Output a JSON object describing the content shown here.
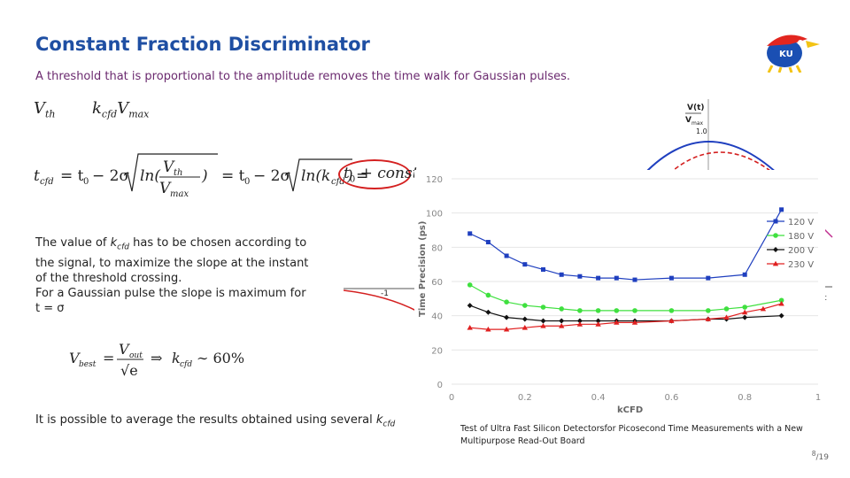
{
  "slide": {
    "title": "Constant Fraction Discriminator",
    "subtitle": "A threshold that is proportional to the amplitude removes the time walk for Gaussian pulses.",
    "page_num": "8",
    "page_total": "19"
  },
  "formulas": {
    "vth_lhs": "V",
    "vth_lhs_sub": "th",
    "vth_rhs": "k",
    "vth_rhs_sub": "cfd",
    "vth_rhs_v": "V",
    "vth_rhs_vsub": "max",
    "const_term": "t",
    "const_sub": "0",
    "const_tail": " + const",
    "vbest_lhs": "V",
    "vbest_sub": "best",
    "vbest_num": "V",
    "vbest_num_sub": "out",
    "vbest_den": "√e",
    "vbest_arrow": "⇒",
    "vbest_k": "k",
    "vbest_k_sub": "cfd",
    "vbest_val": "∼ 60%"
  },
  "text": {
    "para1_a": "The value of ",
    "para1_k": "k",
    "para1_ksub": "cfd",
    "para1_b": " has to be chosen according to the signal, to maximize the slope at the instant of the threshold crossing.",
    "para2": "For a Gaussian pulse the slope is maximum for t = σ",
    "para3_a": "It is possible to average the results obtained using several ",
    "para3_k": "k",
    "para3_ksub": "cfd"
  },
  "pulse_inset": {
    "ylabel_top": "V(t)",
    "ylabel_bot": "V",
    "ylabel_bot_sub": "max",
    "tick_one": "1.0",
    "tick_neg": "-1",
    "x_label": "t"
  },
  "reference": "Test of Ultra Fast Silicon Detectorsfor Picosecond Time Measurements with a New Multipurpose Read-Out Board",
  "colors": {
    "title": "#1f4fa3",
    "subtitle": "#6b2a6f",
    "series_120": "#1f3fbf",
    "series_180": "#3fe03f",
    "series_200": "#111111",
    "series_230": "#e02020"
  },
  "chart_data": {
    "type": "line",
    "xlabel": "kCFD",
    "ylabel": "Time Precision (ps)",
    "xlim": [
      0,
      1
    ],
    "ylim": [
      0,
      120
    ],
    "xticks": [
      "0",
      "0.2",
      "0.4",
      "0.6",
      "0.8",
      "1"
    ],
    "yticks": [
      "0",
      "20",
      "40",
      "60",
      "80",
      "100",
      "120"
    ],
    "legend_position": "top-right",
    "series": [
      {
        "name": "120 V",
        "marker": "square",
        "color": "#1f3fbf",
        "x": [
          0.05,
          0.1,
          0.15,
          0.2,
          0.25,
          0.3,
          0.35,
          0.4,
          0.45,
          0.5,
          0.6,
          0.7,
          0.8,
          0.9
        ],
        "y": [
          88,
          83,
          75,
          70,
          67,
          64,
          63,
          62,
          62,
          61,
          62,
          62,
          64,
          102
        ]
      },
      {
        "name": "180 V",
        "marker": "circle",
        "color": "#3fe03f",
        "x": [
          0.05,
          0.1,
          0.15,
          0.2,
          0.25,
          0.3,
          0.35,
          0.4,
          0.45,
          0.5,
          0.6,
          0.7,
          0.75,
          0.8,
          0.9
        ],
        "y": [
          58,
          52,
          48,
          46,
          45,
          44,
          43,
          43,
          43,
          43,
          43,
          43,
          44,
          45,
          49
        ]
      },
      {
        "name": "200 V",
        "marker": "diamond",
        "color": "#111111",
        "x": [
          0.05,
          0.1,
          0.15,
          0.2,
          0.25,
          0.3,
          0.35,
          0.4,
          0.45,
          0.5,
          0.6,
          0.7,
          0.75,
          0.8,
          0.9
        ],
        "y": [
          46,
          42,
          39,
          38,
          37,
          37,
          37,
          37,
          37,
          37,
          37,
          38,
          38,
          39,
          40
        ]
      },
      {
        "name": "230 V",
        "marker": "triangle",
        "color": "#e02020",
        "x": [
          0.05,
          0.1,
          0.15,
          0.2,
          0.25,
          0.3,
          0.35,
          0.4,
          0.45,
          0.5,
          0.6,
          0.7,
          0.75,
          0.8,
          0.85,
          0.9
        ],
        "y": [
          33,
          32,
          32,
          33,
          34,
          34,
          35,
          35,
          36,
          36,
          37,
          38,
          39,
          42,
          44,
          47
        ]
      }
    ]
  }
}
